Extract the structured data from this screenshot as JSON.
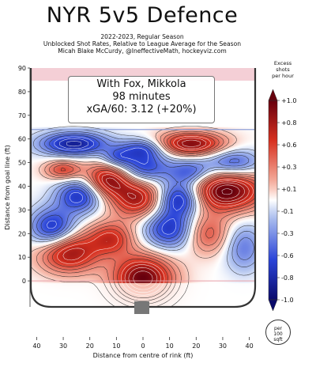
{
  "chart_data": {
    "type": "heatmap",
    "title": "NYR 5v5 Defence",
    "subtitle_lines": [
      "2022-2023, Regular Season",
      "Unblocked Shot Rates, Relative to League Average for the Season",
      "Micah Blake McCurdy, @IneffectiveMath, hockeyviz.com"
    ],
    "annotation": {
      "line1": "With Fox, Mikkola",
      "line2": "98 minutes",
      "line3": "xGA/60: 3.12 (+20%)"
    },
    "xlabel": "Distance from centre of rink (ft)",
    "ylabel": "Distance from goal line (ft)",
    "xlim": [
      -42.5,
      42.5
    ],
    "ylim": [
      -11,
      90
    ],
    "x_ticks": [
      40,
      30,
      20,
      10,
      0,
      10,
      20,
      30,
      40
    ],
    "x_tick_values": [
      -40,
      -30,
      -20,
      -10,
      0,
      10,
      20,
      30,
      40
    ],
    "y_ticks": [
      0,
      10,
      20,
      30,
      40,
      50,
      60,
      70,
      80,
      90
    ],
    "colorbar": {
      "title_lines": [
        "Excess",
        "shots",
        "per hour"
      ],
      "ticks": [
        "+1.0",
        "+0.8",
        "+0.6",
        "+0.3",
        "+0.1",
        "-0.1",
        "-0.3",
        "-0.6",
        "-0.8",
        "-1.0"
      ],
      "tick_values": [
        1.0,
        0.8,
        0.6,
        0.3,
        0.1,
        -0.1,
        -0.3,
        -0.6,
        -0.8,
        -1.0
      ],
      "unit_lines": [
        "per",
        "100",
        "sqft"
      ],
      "colors": {
        "pos_max": "#67000d",
        "pos_mid": "#d7301f",
        "pos_low": "#f7b8a8",
        "neutral": "#ffffff",
        "neg_low": "#b4c6f0",
        "neg_mid": "#2a44d8",
        "neg_max": "#0a0a6b"
      }
    },
    "blobs": [
      {
        "x": 0,
        "y": 1,
        "sx": 8,
        "sy": 7,
        "v": 1.0
      },
      {
        "x": -28,
        "y": 12,
        "sx": 8,
        "sy": 6,
        "v": 0.85
      },
      {
        "x": -12,
        "y": 18,
        "sx": 6,
        "sy": 5,
        "v": 0.6
      },
      {
        "x": 10,
        "y": 22,
        "sx": 7,
        "sy": 6,
        "v": -0.7
      },
      {
        "x": 24,
        "y": 20,
        "sx": 6,
        "sy": 6,
        "v": 0.5
      },
      {
        "x": 38,
        "y": 14,
        "sx": 5,
        "sy": 7,
        "v": -0.4
      },
      {
        "x": -34,
        "y": 22,
        "sx": 6,
        "sy": 6,
        "v": -0.75
      },
      {
        "x": -2,
        "y": 35,
        "sx": 7,
        "sy": 6,
        "v": 0.8
      },
      {
        "x": 31,
        "y": 38,
        "sx": 10,
        "sy": 6,
        "v": 1.05
      },
      {
        "x": 14,
        "y": 35,
        "sx": 6,
        "sy": 5,
        "v": -0.85
      },
      {
        "x": -24,
        "y": 36,
        "sx": 6,
        "sy": 5,
        "v": -0.7
      },
      {
        "x": -13,
        "y": 43,
        "sx": 6,
        "sy": 5,
        "v": 0.85
      },
      {
        "x": 0,
        "y": 48,
        "sx": 7,
        "sy": 5,
        "v": -0.65
      },
      {
        "x": 18,
        "y": 46,
        "sx": 6,
        "sy": 4,
        "v": -0.55
      },
      {
        "x": -30,
        "y": 47,
        "sx": 5,
        "sy": 3,
        "v": 0.55
      },
      {
        "x": 34,
        "y": 50,
        "sx": 7,
        "sy": 4,
        "v": -0.55
      },
      {
        "x": -26,
        "y": 58,
        "sx": 9,
        "sy": 3.5,
        "v": -0.85
      },
      {
        "x": 0,
        "y": 56,
        "sx": 6,
        "sy": 3,
        "v": -0.5
      },
      {
        "x": 18,
        "y": 58,
        "sx": 9,
        "sy": 3.5,
        "v": 0.9
      },
      {
        "x": -10,
        "y": 52,
        "sx": 4,
        "sy": 3,
        "v": -0.4
      }
    ]
  }
}
